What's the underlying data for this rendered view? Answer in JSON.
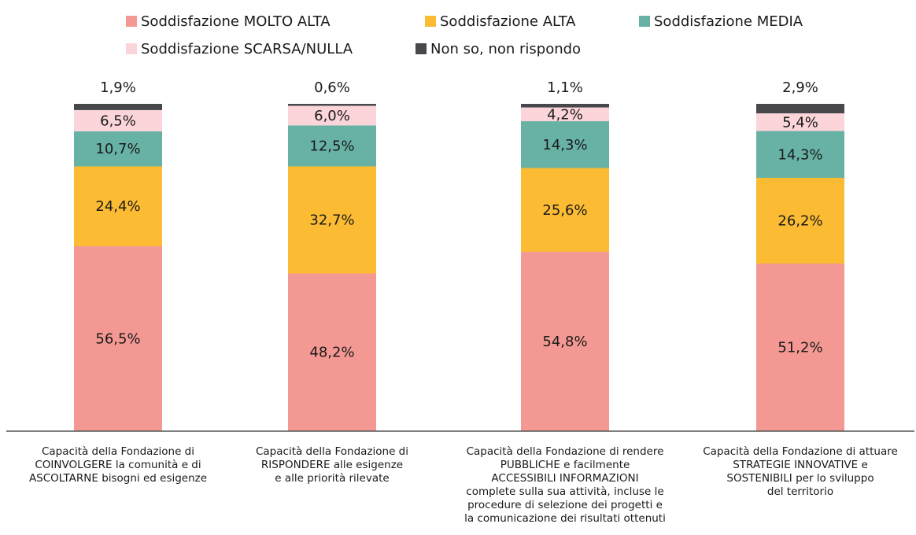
{
  "chart_data": {
    "type": "stacked_bar",
    "categories": [
      "Capacità della Fondazione di\nCOINVOLGERE la comunità e di\nASCOLTARNE bisogni ed esigenze",
      "Capacità della Fondazione di\nRISPONDERE alle esigenze\ne alle priorità rilevate",
      "Capacità della Fondazione di rendere\nPUBBLICHE e facilmente\nACCESSIBILI INFORMAZIONI\ncomplete sulla sua attività, incluse le\nprocedure di selezione dei progetti e\nla comunicazione dei risultati ottenuti",
      "Capacità della Fondazione di attuare\nSTRATEGIE INNOVATIVE e\nSOSTENIBILI per lo sviluppo\ndel territorio"
    ],
    "series": [
      {
        "name": "Soddisfazione MOLTO ALTA",
        "color": "#f49893",
        "values": [
          56.5,
          48.2,
          54.8,
          51.2
        ],
        "value_labels": [
          "56,5%",
          "48,2%",
          "54,8%",
          "51,2%"
        ]
      },
      {
        "name": "Soddisfazione ALTA",
        "color": "#fbbb32",
        "values": [
          24.4,
          32.7,
          25.6,
          26.2
        ],
        "value_labels": [
          "24,4%",
          "32,7%",
          "25,6%",
          "26,2%"
        ]
      },
      {
        "name": "Soddisfazione MEDIA",
        "color": "#68b1a5",
        "values": [
          10.7,
          12.5,
          14.3,
          14.3
        ],
        "value_labels": [
          "10,7%",
          "12,5%",
          "14,3%",
          "14,3%"
        ]
      },
      {
        "name": "Soddisfazione SCARSA/NULLA",
        "color": "#fbd5da",
        "values": [
          6.5,
          6.0,
          4.2,
          5.4
        ],
        "value_labels": [
          "6,5%",
          "6,0%",
          "4,2%",
          "5,4%"
        ]
      },
      {
        "name": "Non so, non rispondo",
        "color": "#47474c",
        "values": [
          1.9,
          0.6,
          1.1,
          2.9
        ],
        "value_labels": [
          "1,9%",
          "0,6%",
          "1,1%",
          "2,9%"
        ]
      }
    ],
    "ylim": [
      0,
      100
    ]
  }
}
